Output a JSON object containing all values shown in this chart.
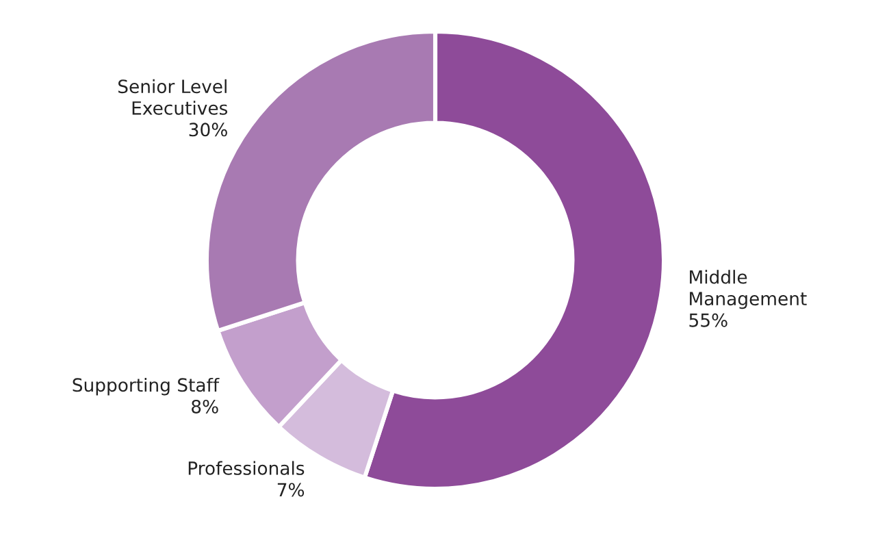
{
  "chart_data": {
    "type": "donut",
    "categories": [
      "Middle Management",
      "Professionals",
      "Supporting Staff",
      "Senior Level Executives"
    ],
    "values": [
      55,
      7,
      8,
      30
    ],
    "value_labels": [
      "55%",
      "7%",
      "8%",
      "30%"
    ],
    "colors": [
      "#8e4b99",
      "#d4bcdc",
      "#c39fcc",
      "#a87ab2"
    ]
  }
}
